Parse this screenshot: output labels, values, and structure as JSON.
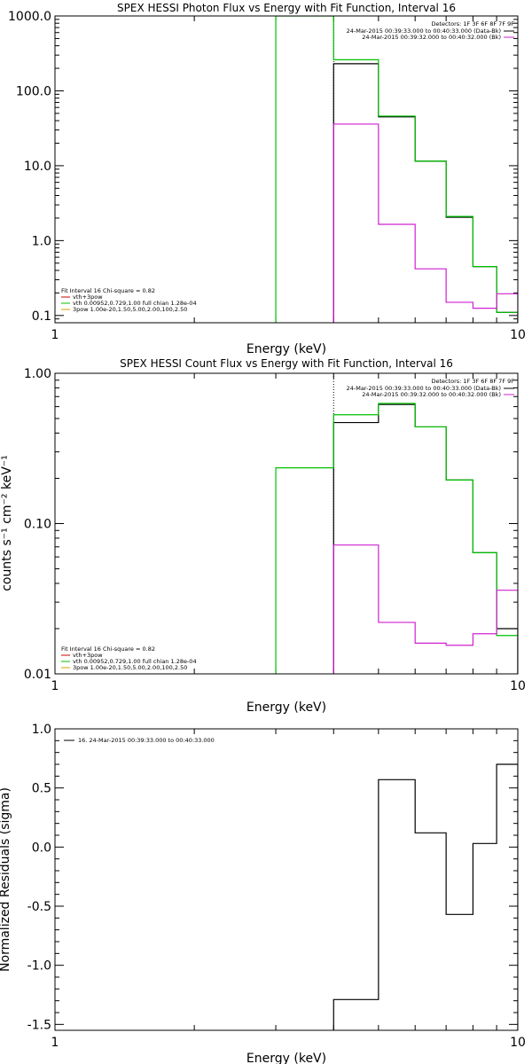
{
  "chart_data": [
    {
      "type": "line",
      "title": "SPEX HESSI Photon Flux vs Energy with Fit Function, Interval 16",
      "xlabel": "Energy (keV)",
      "ylabel": "",
      "xscale": "log",
      "yscale": "log",
      "xlim": [
        1,
        10
      ],
      "ylim": [
        0.08,
        1000
      ],
      "xticks": [
        {
          "v": 1,
          "label": "1"
        },
        {
          "v": 10,
          "label": "10"
        }
      ],
      "yticks": [
        {
          "v": 0.1,
          "label": "0.1"
        },
        {
          "v": 1,
          "label": "1.0"
        },
        {
          "v": 10,
          "label": "10.0"
        },
        {
          "v": 100,
          "label": "100.0"
        },
        {
          "v": 1000,
          "label": "1000.0"
        }
      ],
      "dotted_line_x": 4,
      "legend_top": {
        "detectors": "Detectors: 1F 3F 6F 8F 7F 9F",
        "entries": [
          {
            "text": "24-Mar-2015 00:39:33.000 to 00:40:33.000 (Data-Bk)",
            "color": "#000000"
          },
          {
            "text": "24-Mar-2015 00:39:32.000 to 00:40:32.000 (Bk)",
            "color": "#d020d0"
          }
        ]
      },
      "legend_bottom": [
        {
          "text": "Fit Interval 16   Chi-square = 0.82",
          "color": null
        },
        {
          "text": "vth+3pow",
          "color": "#cc0000"
        },
        {
          "text": "vth 0.00952,0.729,1.00  full chian 1.28e-04",
          "color": "#00c000"
        },
        {
          "text": "3pow 1.00e-20,1.50,5.00,2.00,100,2.50",
          "color": "#d0a000"
        }
      ],
      "series": [
        {
          "color": "#000000",
          "edges": [
            4,
            5,
            6,
            7,
            8,
            9,
            10
          ],
          "values": [
            230,
            45,
            11.5,
            2.05,
            0.45,
            0.11
          ]
        },
        {
          "color": "#00c000",
          "edges": [
            3,
            4,
            5,
            6,
            7,
            8,
            9,
            10
          ],
          "values": [
            1000,
            260,
            46,
            11.5,
            2.1,
            0.45,
            0.11
          ]
        },
        {
          "color": "#d020d0",
          "edges": [
            4,
            5,
            6,
            7,
            8,
            9,
            10
          ],
          "values": [
            36,
            1.65,
            0.42,
            0.15,
            0.125,
            0.195
          ]
        }
      ]
    },
    {
      "type": "line",
      "title": "SPEX HESSI Count Flux vs Energy with Fit Function, Interval 16",
      "xlabel": "Energy (keV)",
      "ylabel": "counts s⁻¹ cm⁻² keV⁻¹",
      "xscale": "log",
      "yscale": "log",
      "xlim": [
        1,
        10
      ],
      "ylim": [
        0.01,
        1.0
      ],
      "xticks": [
        {
          "v": 1,
          "label": "1"
        },
        {
          "v": 10,
          "label": "10"
        }
      ],
      "yticks": [
        {
          "v": 0.01,
          "label": "0.01"
        },
        {
          "v": 0.1,
          "label": "0.10"
        },
        {
          "v": 1,
          "label": "1.00"
        }
      ],
      "dotted_line_x": 4,
      "legend_top": {
        "detectors": "Detectors: 1F 3F 6F 8F 7F 9F",
        "entries": [
          {
            "text": "24-Mar-2015 00:39:33.000 to 00:40:33.000 (Data-Bk)",
            "color": "#000000"
          },
          {
            "text": "24-Mar-2015 00:39:32.000 to 00:40:32.000 (Bk)",
            "color": "#d020d0"
          }
        ]
      },
      "legend_bottom": [
        {
          "text": "Fit Interval 16   Chi-square = 0.82",
          "color": null
        },
        {
          "text": "vth+3pow",
          "color": "#cc0000"
        },
        {
          "text": "vth 0.00952,0.729,1.00  full chian 1.28e-04",
          "color": "#00c000"
        },
        {
          "text": "3pow 1.00e-20,1.50,5.00,2.00,100,2.50",
          "color": "#d0a000"
        }
      ],
      "series": [
        {
          "color": "#000000",
          "edges": [
            4,
            5,
            6,
            7,
            8,
            9,
            10
          ],
          "values": [
            0.47,
            0.62,
            0.44,
            0.195,
            0.064,
            0.02
          ]
        },
        {
          "color": "#00c000",
          "edges": [
            3,
            4,
            5,
            6,
            7,
            8,
            9,
            10
          ],
          "values": [
            0.235,
            0.53,
            0.63,
            0.44,
            0.195,
            0.064,
            0.018
          ]
        },
        {
          "color": "#d020d0",
          "edges": [
            4,
            5,
            6,
            7,
            8,
            9,
            10
          ],
          "values": [
            0.072,
            0.022,
            0.016,
            0.0155,
            0.0185,
            0.036
          ]
        }
      ]
    },
    {
      "type": "line",
      "title": "",
      "xlabel": "Energy (keV)",
      "ylabel": "Normalized Residuals (sigma)",
      "xscale": "log",
      "yscale": "linear",
      "xlim": [
        1,
        10
      ],
      "ylim": [
        -1.55,
        1.0
      ],
      "xticks": [
        {
          "v": 1,
          "label": "1"
        },
        {
          "v": 10,
          "label": "10"
        }
      ],
      "yticks": [
        {
          "v": -1.5,
          "label": "-1.5"
        },
        {
          "v": -1.0,
          "label": "-1.0"
        },
        {
          "v": -0.5,
          "label": "-0.5"
        },
        {
          "v": 0.0,
          "label": "0.0"
        },
        {
          "v": 0.5,
          "label": "0.5"
        },
        {
          "v": 1.0,
          "label": "1.0"
        }
      ],
      "legend_top": {
        "detectors": "",
        "entries": [
          {
            "text": "16. 24-Mar-2015 00:39:33.000 to 00:40:33.000",
            "color": "#000000"
          }
        ]
      },
      "legend_bottom": [],
      "series": [
        {
          "color": "#000000",
          "edges": [
            4,
            5,
            6,
            7,
            8,
            9,
            10
          ],
          "values": [
            -1.29,
            0.57,
            0.12,
            -0.57,
            0.03,
            0.7
          ]
        }
      ]
    }
  ]
}
